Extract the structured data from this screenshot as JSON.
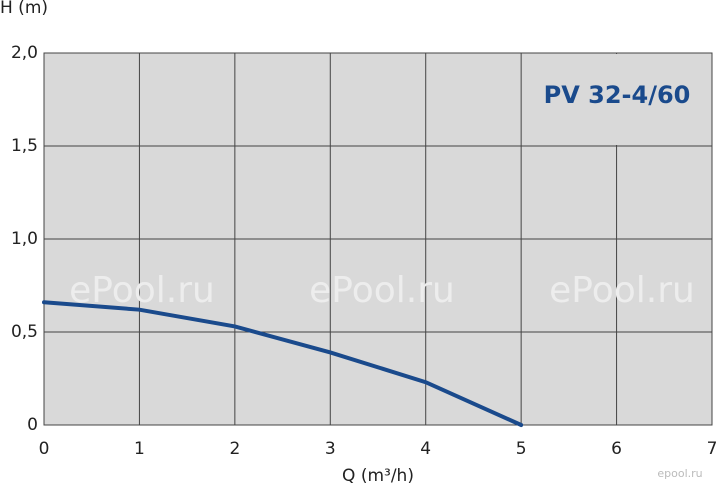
{
  "chart_data": {
    "type": "line",
    "title": "PV 32-4/60",
    "x_label": "Q (m³/h)",
    "y_label": "H (m)",
    "x": [
      0,
      1,
      2,
      3,
      4,
      5
    ],
    "series": [
      {
        "name": "PV 32-4/60",
        "color": "#1a4a8c",
        "values": [
          0.66,
          0.62,
          0.53,
          0.39,
          0.23,
          0
        ]
      }
    ],
    "xlim": [
      0,
      7
    ],
    "xticks": [
      0,
      1,
      2,
      3,
      4,
      5,
      6,
      7
    ],
    "ylim": [
      0,
      2
    ],
    "yticks": [
      0,
      {
        "value": 0.5,
        "label": "0,5"
      },
      {
        "value": 1,
        "label": "1,0"
      },
      {
        "value": 1.5,
        "label": "1,5"
      },
      {
        "value": 2,
        "label": "2,0"
      }
    ],
    "grid": true,
    "watermarks": [
      "ePool.ru",
      "ePool.ru",
      "ePool.ru",
      "epool.ru"
    ]
  }
}
